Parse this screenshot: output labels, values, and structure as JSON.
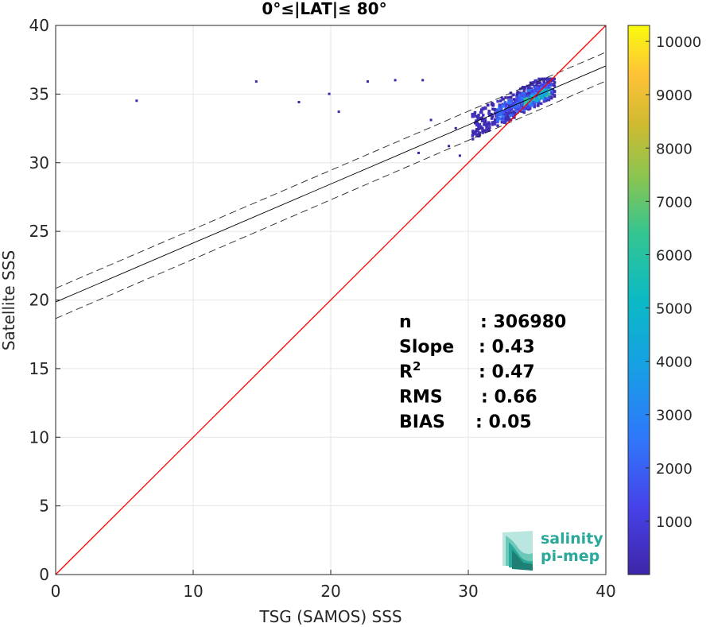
{
  "chart_data": {
    "type": "scatter",
    "title": "0°≤|LAT|≤ 80°",
    "xlabel": "TSG (SAMOS) SSS",
    "ylabel": "Satellite SSS",
    "xlim": [
      0,
      40
    ],
    "ylim": [
      0,
      40
    ],
    "xticks": [
      0,
      10,
      20,
      30,
      40
    ],
    "yticks": [
      0,
      5,
      10,
      15,
      20,
      25,
      30,
      35,
      40
    ],
    "grid": true,
    "colorbar": {
      "colormap": "parula",
      "range": [
        0,
        10300
      ],
      "ticks": [
        1000,
        2000,
        3000,
        4000,
        5000,
        6000,
        7000,
        8000,
        9000,
        10000
      ]
    },
    "one_to_one_line": {
      "color": "#ff0000",
      "points": [
        [
          0,
          0
        ],
        [
          40,
          40
        ]
      ]
    },
    "regression_line": {
      "color": "#000000",
      "points": [
        [
          0,
          19.85
        ],
        [
          40,
          37.05
        ]
      ]
    },
    "confidence_lines": [
      {
        "style": "dashed",
        "points": [
          [
            0,
            20.85
          ],
          [
            40,
            38.05
          ]
        ]
      },
      {
        "style": "dashed",
        "points": [
          [
            0,
            18.65
          ],
          [
            40,
            35.95
          ]
        ]
      }
    ],
    "density_clusters": [
      {
        "x": [
          30.2,
          36.2
        ],
        "y": [
          31.8,
          36.2
        ],
        "level": "low"
      },
      {
        "x": [
          32.0,
          36.0
        ],
        "y": [
          33.0,
          35.8
        ],
        "level": "medium"
      },
      {
        "x": [
          34.0,
          35.8
        ],
        "y": [
          34.2,
          35.4
        ],
        "level": "high"
      }
    ],
    "stats": [
      {
        "label": "n",
        "value": ": 306980"
      },
      {
        "label": "Slope",
        "value": ": 0.43"
      },
      {
        "label": "R",
        "sup": "2",
        "value": ": 0.47"
      },
      {
        "label": "RMS",
        "value": ": 0.66"
      },
      {
        "label": "BIAS",
        "value": ": 0.05"
      }
    ]
  },
  "logo": {
    "line1": "salinity",
    "line2": "pi-mep",
    "color": "#2aa89a"
  }
}
